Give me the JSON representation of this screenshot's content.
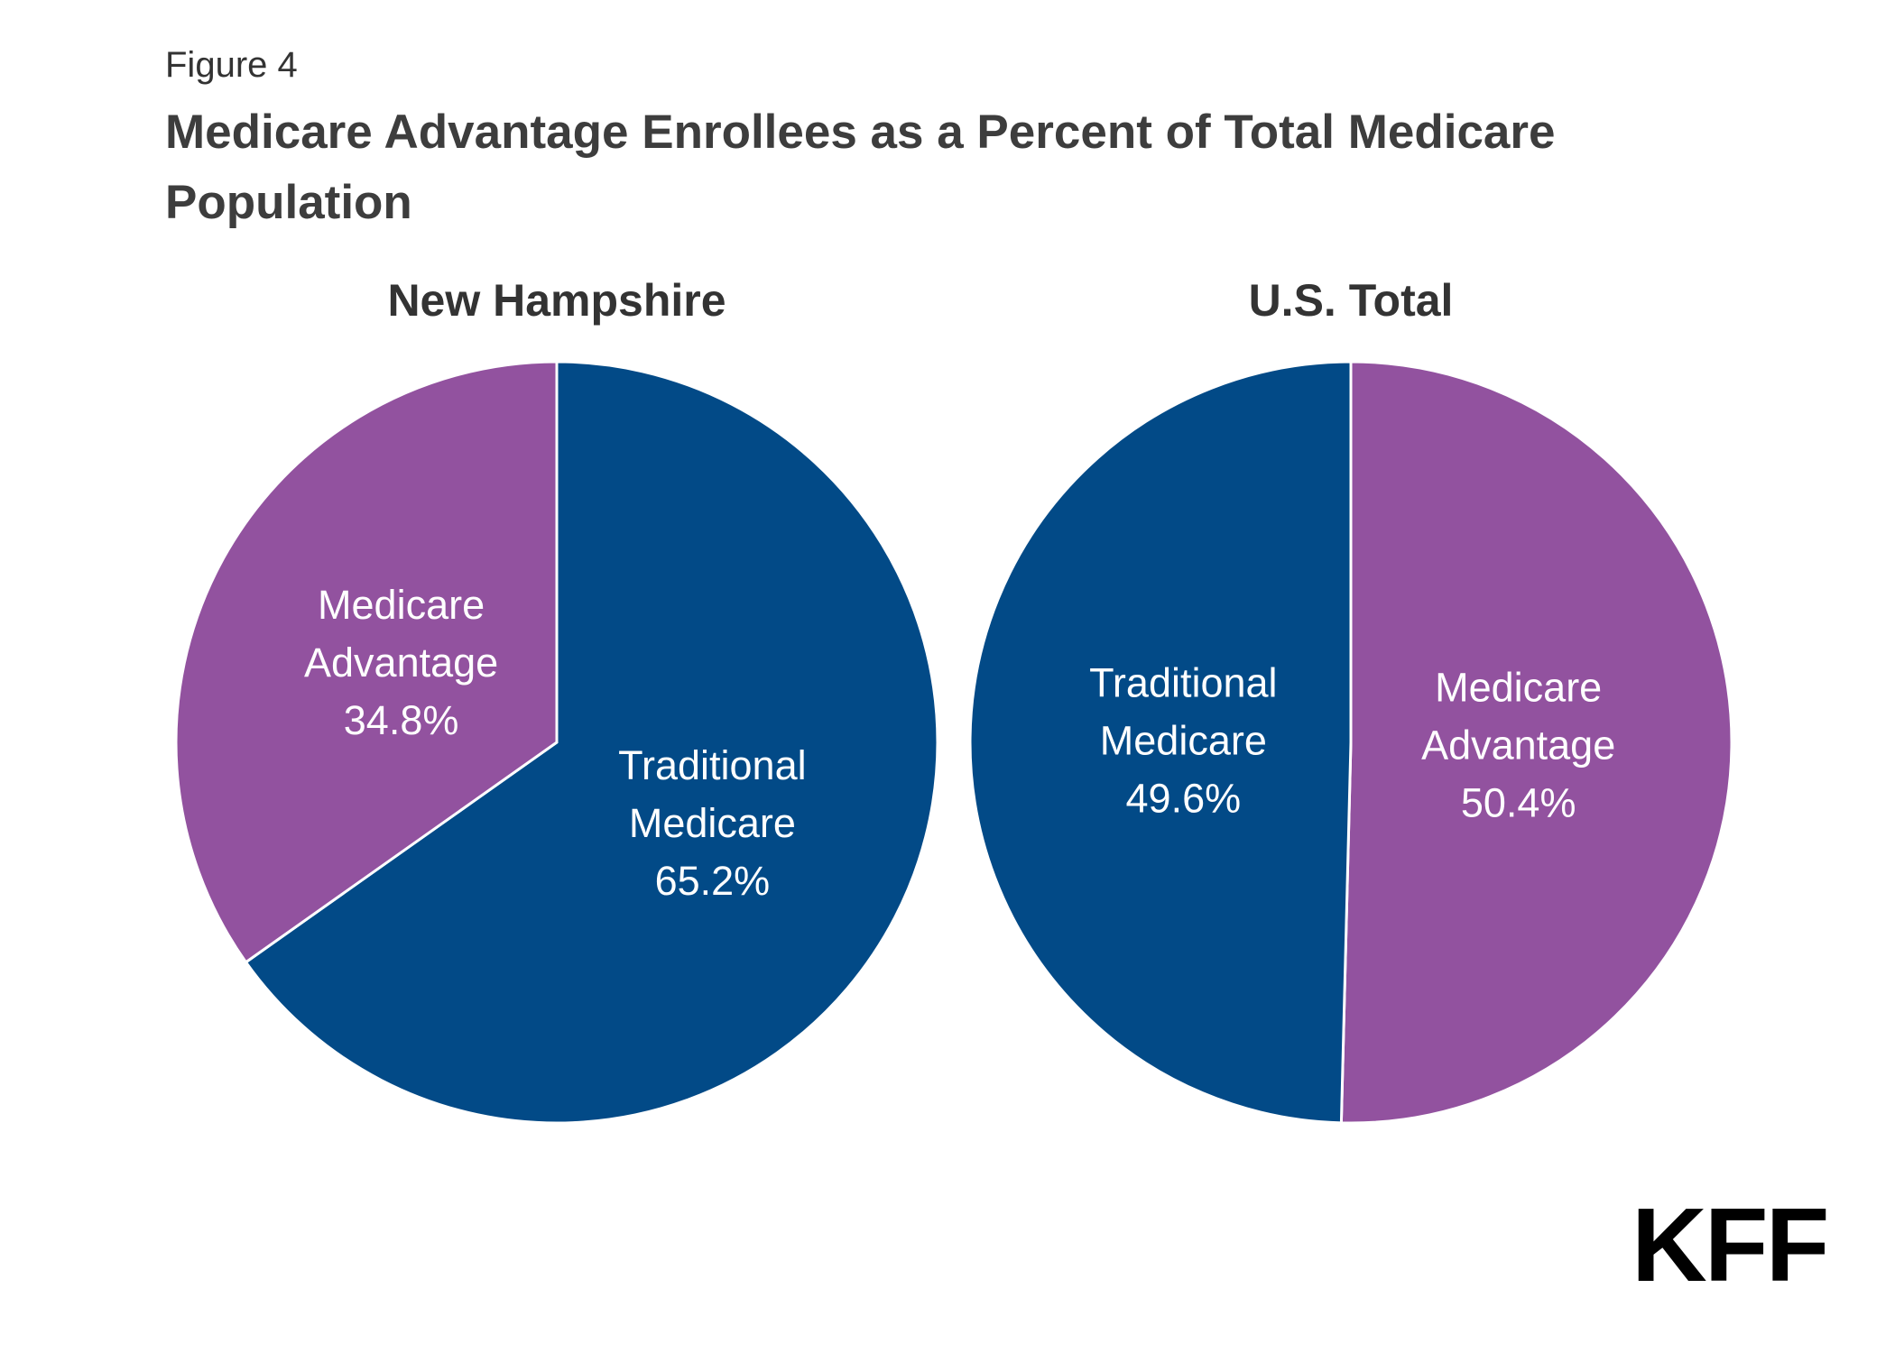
{
  "figure_label": "Figure 4",
  "title": "Medicare Advantage Enrollees as a Percent of Total Medicare Population",
  "logo": "KFF",
  "colors": {
    "traditional_medicare": "#024a87",
    "medicare_advantage": "#92529f"
  },
  "chart_data": [
    {
      "type": "pie",
      "title": "New Hampshire",
      "slices": [
        {
          "label_lines": [
            "Medicare",
            "Advantage",
            "34.8%"
          ],
          "value": 34.8,
          "color": "#92529f"
        },
        {
          "label_lines": [
            "Traditional",
            "Medicare",
            "65.2%"
          ],
          "value": 65.2,
          "color": "#024a87"
        }
      ],
      "start_slice": 1,
      "direction": "clockwise"
    },
    {
      "type": "pie",
      "title": "U.S. Total",
      "slices": [
        {
          "label_lines": [
            "Traditional",
            "Medicare",
            "49.6%"
          ],
          "value": 49.6,
          "color": "#024a87"
        },
        {
          "label_lines": [
            "Medicare",
            "Advantage",
            "50.4%"
          ],
          "value": 50.4,
          "color": "#92529f"
        }
      ],
      "start_slice": 1,
      "direction": "clockwise"
    }
  ]
}
